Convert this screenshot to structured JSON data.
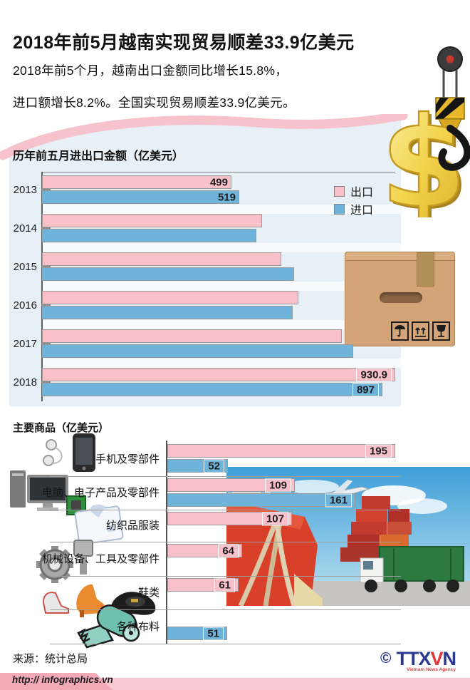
{
  "header": {
    "title": "2018年前5月越南实现贸易顺差33.9亿美元",
    "subtitle_line1": "2018年前5个月，越南出口金额同比增长15.8%，",
    "subtitle_line2": "进口额增长8.2%。全国实现贸易顺差33.9亿美元。"
  },
  "colors": {
    "export_pink": "#f8c1ca",
    "import_blue": "#6db3da",
    "panel_blue": "#e7f0f7",
    "wave_pink": "#f6c3cc",
    "ribbon_strip_pink": "#f7c9d0",
    "ribbon_tab_pink": "#f3aab7",
    "logo_blue": "#2b3990",
    "logo_red": "#e03a3c",
    "gold": "#f2d44c"
  },
  "chart_data": [
    {
      "type": "bar",
      "orientation": "horizontal",
      "title": "历年前五月进出口金额（亿美元）",
      "unit": "亿美元",
      "legend_position": "top-right",
      "legend": [
        {
          "name": "出口",
          "color": "#f8c1ca"
        },
        {
          "name": "进口",
          "color": "#6db3da"
        }
      ],
      "categories": [
        "2013",
        "2014",
        "2015",
        "2016",
        "2017",
        "2018"
      ],
      "series": [
        {
          "name": "出口",
          "values": [
            499,
            580,
            630,
            675,
            790,
            930.9
          ],
          "labels": [
            "499",
            null,
            null,
            null,
            null,
            "930.9"
          ],
          "boxed": [
            false,
            false,
            false,
            false,
            false,
            true
          ]
        },
        {
          "name": "进口",
          "values": [
            519,
            565,
            665,
            660,
            820,
            897
          ],
          "labels": [
            "519",
            null,
            null,
            null,
            null,
            "897"
          ],
          "boxed": [
            false,
            false,
            false,
            false,
            false,
            true
          ]
        }
      ],
      "xlim": [
        0,
        950
      ],
      "grid": false,
      "note": "unlabeled 2014-2017 values estimated from bar lengths"
    },
    {
      "type": "bar",
      "orientation": "horizontal",
      "title": "主要商品（亿美元）",
      "unit": "亿美元",
      "rows": [
        {
          "label": "手机及零部件",
          "icon": "smartphone-earphones-icon",
          "export": 195,
          "import": 52
        },
        {
          "label": "电脑、电子产品及零部件",
          "icon": "desktop-computer-chip-icon",
          "export": 109,
          "import": 161
        },
        {
          "label": "纺织品服装",
          "icon": "folded-shirt-icon",
          "export": 107,
          "import": null
        },
        {
          "label": "机械设备、工具及零部件",
          "icon": "gear-piston-icon",
          "export": 64,
          "import": null
        },
        {
          "label": "鞋类",
          "icon": "shoes-icon",
          "export": 61,
          "import": null
        },
        {
          "label": "各种布料",
          "icon": "fabric-roll-icon",
          "export": null,
          "import": 51
        }
      ],
      "xlim": [
        0,
        200
      ],
      "grid": false
    }
  ],
  "illustrations": {
    "dollar_crane": "gold dollar sign hanging by crane hook and pulley",
    "shipping_box": "cardboard box with umbrella / this-side-up / fragile marks",
    "cargo_photo": "container port photo: red ship with ropes, stacked containers, green container truck, airplane"
  },
  "footer": {
    "source": "来源：统计总局",
    "url": "http:// infographics.vn",
    "copyright": "©",
    "logo_part1": "TTX",
    "logo_part2": "V",
    "logo_part3": "N",
    "logo_subtext": "Vietnam News Agency"
  }
}
